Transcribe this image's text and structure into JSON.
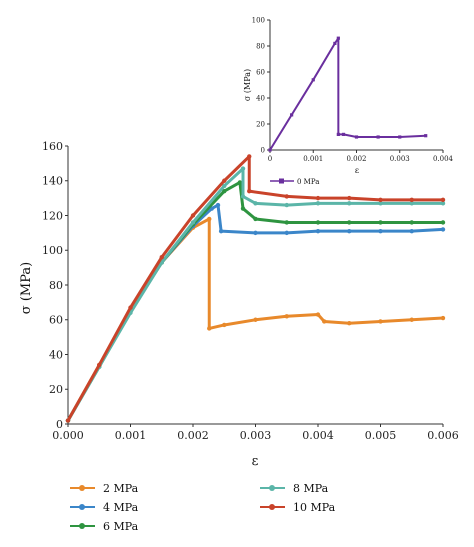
{
  "chart_data": [
    {
      "type": "line",
      "xlabel": "ε",
      "ylabel": "σ (MPa)",
      "xlim": [
        0,
        0.006
      ],
      "ylim": [
        0,
        160
      ],
      "x_ticks": [
        "0.000",
        "0.001",
        "0.002",
        "0.003",
        "0.004",
        "0.005",
        "0.006"
      ],
      "y_ticks": [
        "0",
        "20",
        "40",
        "60",
        "80",
        "100",
        "120",
        "140",
        "160"
      ],
      "grid": false,
      "legend_position": "bottom",
      "series": [
        {
          "name": "2 MPa",
          "color": "#e8892b",
          "points": [
            [
              0,
              2
            ],
            [
              0.0005,
              34
            ],
            [
              0.001,
              66
            ],
            [
              0.0015,
              93
            ],
            [
              0.002,
              113
            ],
            [
              0.00226,
              118
            ],
            [
              0.00226,
              55
            ],
            [
              0.0025,
              57
            ],
            [
              0.003,
              60
            ],
            [
              0.0035,
              62
            ],
            [
              0.004,
              63
            ],
            [
              0.0041,
              59
            ],
            [
              0.0045,
              58
            ],
            [
              0.005,
              59
            ],
            [
              0.0055,
              60
            ],
            [
              0.006,
              61
            ]
          ]
        },
        {
          "name": "4 MPa",
          "color": "#3b86c9",
          "points": [
            [
              0,
              2
            ],
            [
              0.0005,
              33
            ],
            [
              0.001,
              65
            ],
            [
              0.0015,
              93
            ],
            [
              0.002,
              114
            ],
            [
              0.0023,
              124
            ],
            [
              0.0024,
              126
            ],
            [
              0.00245,
              111
            ],
            [
              0.003,
              110
            ],
            [
              0.0035,
              110
            ],
            [
              0.004,
              111
            ],
            [
              0.0045,
              111
            ],
            [
              0.005,
              111
            ],
            [
              0.0055,
              111
            ],
            [
              0.006,
              112
            ]
          ]
        },
        {
          "name": "6 MPa",
          "color": "#2e9440",
          "points": [
            [
              0,
              2
            ],
            [
              0.0005,
              33
            ],
            [
              0.001,
              65
            ],
            [
              0.0015,
              93
            ],
            [
              0.002,
              115
            ],
            [
              0.0025,
              134
            ],
            [
              0.00275,
              139
            ],
            [
              0.0028,
              124
            ],
            [
              0.003,
              118
            ],
            [
              0.0035,
              116
            ],
            [
              0.004,
              116
            ],
            [
              0.0045,
              116
            ],
            [
              0.005,
              116
            ],
            [
              0.0055,
              116
            ],
            [
              0.006,
              116
            ]
          ]
        },
        {
          "name": "8 MPa",
          "color": "#5bb5a8",
          "points": [
            [
              0,
              2
            ],
            [
              0.0005,
              33
            ],
            [
              0.001,
              64
            ],
            [
              0.0015,
              93
            ],
            [
              0.002,
              116
            ],
            [
              0.0025,
              137
            ],
            [
              0.0028,
              147
            ],
            [
              0.0028,
              131
            ],
            [
              0.003,
              127
            ],
            [
              0.0035,
              126
            ],
            [
              0.004,
              127
            ],
            [
              0.0045,
              127
            ],
            [
              0.005,
              127
            ],
            [
              0.0055,
              127
            ],
            [
              0.006,
              127
            ]
          ]
        },
        {
          "name": "10 MPa",
          "color": "#c9432a",
          "points": [
            [
              0,
              2
            ],
            [
              0.0005,
              34
            ],
            [
              0.001,
              67
            ],
            [
              0.0015,
              96
            ],
            [
              0.002,
              120
            ],
            [
              0.0025,
              140
            ],
            [
              0.0029,
              154
            ],
            [
              0.0029,
              134
            ],
            [
              0.0035,
              131
            ],
            [
              0.004,
              130
            ],
            [
              0.0045,
              130
            ],
            [
              0.005,
              129
            ],
            [
              0.0055,
              129
            ],
            [
              0.006,
              129
            ]
          ]
        }
      ]
    },
    {
      "type": "line",
      "xlabel": "ε",
      "ylabel": "σ (MPa)",
      "xlim": [
        0,
        0.004
      ],
      "ylim": [
        0,
        100
      ],
      "x_ticks": [
        "0",
        "0.001",
        "0.002",
        "0.003",
        "0.004"
      ],
      "y_ticks": [
        "0",
        "20",
        "40",
        "60",
        "80",
        "100"
      ],
      "grid": false,
      "legend_position": "bottom",
      "series": [
        {
          "name": "0 MPa",
          "color": "#6a2f9e",
          "points": [
            [
              0,
              0
            ],
            [
              0.0005,
              27
            ],
            [
              0.001,
              54
            ],
            [
              0.0015,
              82
            ],
            [
              0.00158,
              86
            ],
            [
              0.00158,
              12
            ],
            [
              0.0017,
              12
            ],
            [
              0.002,
              10
            ],
            [
              0.0025,
              10
            ],
            [
              0.003,
              10
            ],
            [
              0.0036,
              11
            ]
          ]
        }
      ]
    }
  ]
}
